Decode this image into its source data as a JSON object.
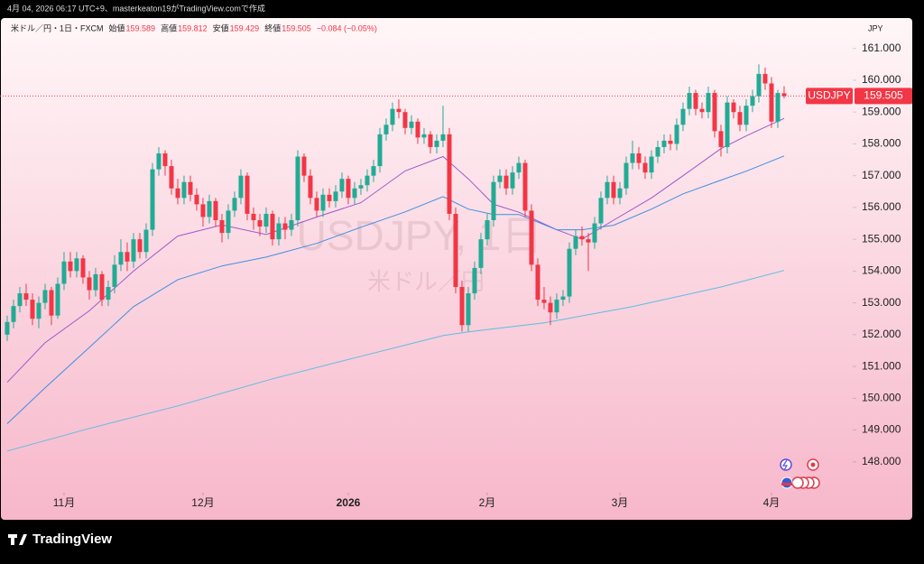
{
  "caption": "4月 04, 2026 06:17 UTC+9、masterkeaton19がTradingView.comで作成",
  "brand": "TradingView",
  "chart_data": {
    "type": "candlestick",
    "symbol": "米ドル／円・1日・FXCM",
    "legend": {
      "open_label": "始値",
      "open": 159.589,
      "high_label": "高値",
      "high": 159.812,
      "low_label": "安値",
      "low": 159.429,
      "close_label": "終値",
      "close": 159.505,
      "change": "−0.084 (−0.05%)"
    },
    "watermark": "USDJPY, 1日",
    "watermark_sub": "米ドル／円",
    "ticker": "USDJPY",
    "currency": "JPY",
    "up_color": "#22ab94",
    "down_color": "#f23645",
    "xlim": [
      -1.14,
      133.86
    ],
    "xticks": [
      {
        "value": 9,
        "label": "11月"
      },
      {
        "value": 31,
        "label": "12月"
      },
      {
        "value": 54,
        "label": "2026"
      },
      {
        "value": 76,
        "label": "2月"
      },
      {
        "value": 97,
        "label": "3月"
      },
      {
        "value": 121,
        "label": "4月"
      }
    ],
    "ylim": [
      147.2,
      161.9
    ],
    "yticks": [
      {
        "value": 148,
        "label": "148.000"
      },
      {
        "value": 149,
        "label": "149.000"
      },
      {
        "value": 150,
        "label": "150.000"
      },
      {
        "value": 151,
        "label": "151.000"
      },
      {
        "value": 152,
        "label": "152.000"
      },
      {
        "value": 153,
        "label": "153.000"
      },
      {
        "value": 154,
        "label": "154.000"
      },
      {
        "value": 155,
        "label": "155.000"
      },
      {
        "value": 156,
        "label": "156.000"
      },
      {
        "value": 157,
        "label": "157.000"
      },
      {
        "value": 158,
        "label": "158.000"
      },
      {
        "value": 159,
        "label": "159.000"
      },
      {
        "value": 160,
        "label": "160.000"
      },
      {
        "value": 161,
        "label": "161.000"
      }
    ],
    "ohlc": [
      [
        152.0,
        152.6,
        151.8,
        152.4
      ],
      [
        152.4,
        153.1,
        152.2,
        152.9
      ],
      [
        152.9,
        153.5,
        152.7,
        153.3
      ],
      [
        153.3,
        153.6,
        152.9,
        153.1
      ],
      [
        153.1,
        153.3,
        152.3,
        152.5
      ],
      [
        152.5,
        153.2,
        152.2,
        153.0
      ],
      [
        153.0,
        153.6,
        152.8,
        153.4
      ],
      [
        153.4,
        153.5,
        152.3,
        152.6
      ],
      [
        152.6,
        153.8,
        152.5,
        153.6
      ],
      [
        153.6,
        154.6,
        153.4,
        154.3
      ],
      [
        154.3,
        154.6,
        153.8,
        154.0
      ],
      [
        154.0,
        154.6,
        153.8,
        154.4
      ],
      [
        154.4,
        154.5,
        153.6,
        153.8
      ],
      [
        153.8,
        154.0,
        153.1,
        153.4
      ],
      [
        153.4,
        154.1,
        153.2,
        153.9
      ],
      [
        153.9,
        154.0,
        152.9,
        153.1
      ],
      [
        153.1,
        153.7,
        152.9,
        153.5
      ],
      [
        153.5,
        154.5,
        153.3,
        154.2
      ],
      [
        154.2,
        155.0,
        154.0,
        154.6
      ],
      [
        154.6,
        154.9,
        154.0,
        154.3
      ],
      [
        154.3,
        155.2,
        154.1,
        155.0
      ],
      [
        155.0,
        155.2,
        154.4,
        154.6
      ],
      [
        154.6,
        155.5,
        154.4,
        155.3
      ],
      [
        155.3,
        157.4,
        155.1,
        157.2
      ],
      [
        157.2,
        157.9,
        157.0,
        157.7
      ],
      [
        157.7,
        157.8,
        157.0,
        157.3
      ],
      [
        157.3,
        157.5,
        156.4,
        156.6
      ],
      [
        156.6,
        156.9,
        156.1,
        156.3
      ],
      [
        156.3,
        157.0,
        156.1,
        156.8
      ],
      [
        156.8,
        157.0,
        156.2,
        156.4
      ],
      [
        156.4,
        156.6,
        155.9,
        156.1
      ],
      [
        156.1,
        156.3,
        155.4,
        155.7
      ],
      [
        155.7,
        156.4,
        155.5,
        156.2
      ],
      [
        156.2,
        156.3,
        155.4,
        155.6
      ],
      [
        155.6,
        155.8,
        154.9,
        155.2
      ],
      [
        155.2,
        156.1,
        155.0,
        155.9
      ],
      [
        155.9,
        156.5,
        155.7,
        156.3
      ],
      [
        156.3,
        157.2,
        156.1,
        157.0
      ],
      [
        157.0,
        157.1,
        155.6,
        155.8
      ],
      [
        155.8,
        156.0,
        155.3,
        155.6
      ],
      [
        155.6,
        155.8,
        155.1,
        155.4
      ],
      [
        155.4,
        156.0,
        155.2,
        155.8
      ],
      [
        155.8,
        155.9,
        154.8,
        155.0
      ],
      [
        155.0,
        155.7,
        154.8,
        155.5
      ],
      [
        155.5,
        155.7,
        155.0,
        155.3
      ],
      [
        155.3,
        155.8,
        155.1,
        155.6
      ],
      [
        155.6,
        157.8,
        155.4,
        157.6
      ],
      [
        157.6,
        157.7,
        156.8,
        157.0
      ],
      [
        157.0,
        157.2,
        156.1,
        156.3
      ],
      [
        156.3,
        156.5,
        155.7,
        155.9
      ],
      [
        155.9,
        156.6,
        155.7,
        156.4
      ],
      [
        156.4,
        156.6,
        156.0,
        156.2
      ],
      [
        156.2,
        156.7,
        156.0,
        156.5
      ],
      [
        156.5,
        157.1,
        156.3,
        156.9
      ],
      [
        156.9,
        157.0,
        156.1,
        156.3
      ],
      [
        156.3,
        156.8,
        156.1,
        156.6
      ],
      [
        156.6,
        156.9,
        156.4,
        156.7
      ],
      [
        156.7,
        157.2,
        156.5,
        157.0
      ],
      [
        157.0,
        157.5,
        156.8,
        157.3
      ],
      [
        157.3,
        158.5,
        157.1,
        158.3
      ],
      [
        158.3,
        158.8,
        158.1,
        158.6
      ],
      [
        158.6,
        159.3,
        158.4,
        159.1
      ],
      [
        159.1,
        159.4,
        158.8,
        159.0
      ],
      [
        159.0,
        159.1,
        158.3,
        158.5
      ],
      [
        158.5,
        158.9,
        158.3,
        158.7
      ],
      [
        158.7,
        158.8,
        158.0,
        158.2
      ],
      [
        158.2,
        158.5,
        158.0,
        158.3
      ],
      [
        158.3,
        158.4,
        157.7,
        157.9
      ],
      [
        157.9,
        158.3,
        157.7,
        158.1
      ],
      [
        158.1,
        159.2,
        157.9,
        158.3
      ],
      [
        158.3,
        158.5,
        155.6,
        155.8
      ],
      [
        155.8,
        156.0,
        153.3,
        153.5
      ],
      [
        153.5,
        153.7,
        152.1,
        152.3
      ],
      [
        152.3,
        153.5,
        152.1,
        153.3
      ],
      [
        153.3,
        154.3,
        153.1,
        154.1
      ],
      [
        154.1,
        155.2,
        153.9,
        155.0
      ],
      [
        155.0,
        155.8,
        154.8,
        155.6
      ],
      [
        155.6,
        157.0,
        155.4,
        156.8
      ],
      [
        156.8,
        157.2,
        156.6,
        157.0
      ],
      [
        157.0,
        157.2,
        156.4,
        156.6
      ],
      [
        156.6,
        157.3,
        156.4,
        157.1
      ],
      [
        157.1,
        157.6,
        156.9,
        157.4
      ],
      [
        157.4,
        157.5,
        155.7,
        155.9
      ],
      [
        155.9,
        156.1,
        154.0,
        154.2
      ],
      [
        154.2,
        154.4,
        152.9,
        153.1
      ],
      [
        153.1,
        153.5,
        152.8,
        153.0
      ],
      [
        153.0,
        153.2,
        152.3,
        152.7
      ],
      [
        152.7,
        153.3,
        152.5,
        153.1
      ],
      [
        153.1,
        153.4,
        152.9,
        153.2
      ],
      [
        153.2,
        154.9,
        153.0,
        154.7
      ],
      [
        154.7,
        155.3,
        154.5,
        155.1
      ],
      [
        155.1,
        155.4,
        154.8,
        155.0
      ],
      [
        155.0,
        155.2,
        154.0,
        154.9
      ],
      [
        154.9,
        155.7,
        154.7,
        155.5
      ],
      [
        155.5,
        156.5,
        155.3,
        156.3
      ],
      [
        156.3,
        157.0,
        156.1,
        156.8
      ],
      [
        156.8,
        157.0,
        156.1,
        156.3
      ],
      [
        156.3,
        156.8,
        156.1,
        156.6
      ],
      [
        156.6,
        157.6,
        156.4,
        157.4
      ],
      [
        157.4,
        158.1,
        157.2,
        157.7
      ],
      [
        157.7,
        157.9,
        157.2,
        157.4
      ],
      [
        157.4,
        157.6,
        156.9,
        157.1
      ],
      [
        157.1,
        157.8,
        156.9,
        157.6
      ],
      [
        157.6,
        158.1,
        157.4,
        157.9
      ],
      [
        157.9,
        158.3,
        157.7,
        158.1
      ],
      [
        158.1,
        158.3,
        157.8,
        158.0
      ],
      [
        158.0,
        158.8,
        157.8,
        158.6
      ],
      [
        158.6,
        159.3,
        158.4,
        159.1
      ],
      [
        159.1,
        159.8,
        158.9,
        159.6
      ],
      [
        159.6,
        159.7,
        158.9,
        159.1
      ],
      [
        159.1,
        159.3,
        158.8,
        159.0
      ],
      [
        159.0,
        159.8,
        158.8,
        159.6
      ],
      [
        159.6,
        159.7,
        158.2,
        158.4
      ],
      [
        158.4,
        158.6,
        157.6,
        157.9
      ],
      [
        157.9,
        159.5,
        157.7,
        159.3
      ],
      [
        159.3,
        159.4,
        158.8,
        159.0
      ],
      [
        159.0,
        159.2,
        158.4,
        158.6
      ],
      [
        158.6,
        159.4,
        158.4,
        159.2
      ],
      [
        159.2,
        159.7,
        159.0,
        159.5
      ],
      [
        159.5,
        160.5,
        159.3,
        160.2
      ],
      [
        160.2,
        160.4,
        159.7,
        159.9
      ],
      [
        159.9,
        160.1,
        158.5,
        158.7
      ],
      [
        158.7,
        159.7,
        158.5,
        159.6
      ],
      [
        159.589,
        159.812,
        159.429,
        159.505
      ]
    ],
    "lines": [
      {
        "color": "#9b59c9",
        "x": [
          0,
          6,
          13,
          20,
          27,
          34,
          41,
          49,
          56,
          63,
          69,
          73,
          77,
          81,
          87,
          91,
          96,
          102,
          107,
          113,
          117,
          123
        ],
        "values": [
          150.5,
          151.75,
          152.75,
          154.0,
          155.1,
          155.45,
          155.15,
          155.7,
          156.15,
          157.15,
          157.6,
          156.9,
          156.1,
          155.85,
          155.3,
          155.0,
          155.6,
          156.3,
          157.0,
          157.85,
          158.25,
          158.8
        ]
      },
      {
        "color": "#3d8fe0",
        "x": [
          0,
          6,
          13,
          20,
          27,
          34,
          41,
          49,
          56,
          63,
          69,
          73,
          77,
          81,
          87,
          91,
          96,
          102,
          107,
          113,
          117,
          123
        ],
        "values": [
          149.2,
          150.33,
          151.6,
          152.88,
          153.73,
          154.16,
          154.44,
          154.87,
          155.38,
          155.86,
          156.34,
          155.95,
          155.78,
          155.78,
          155.3,
          155.3,
          155.44,
          155.95,
          156.43,
          156.86,
          157.14,
          157.62
        ]
      },
      {
        "color": "#5bbde3",
        "x": [
          0,
          13,
          27,
          42,
          56,
          69,
          73,
          85,
          99,
          113,
          123
        ],
        "values": [
          148.34,
          149.05,
          149.76,
          150.61,
          151.32,
          151.97,
          152.09,
          152.37,
          152.88,
          153.5,
          154.02
        ]
      }
    ]
  }
}
